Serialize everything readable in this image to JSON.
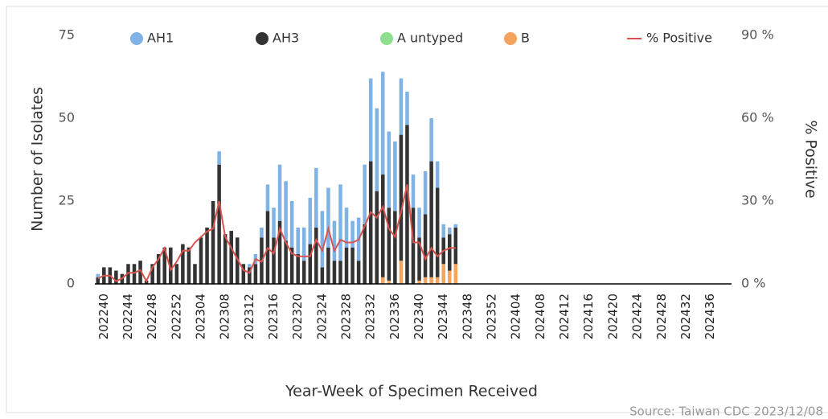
{
  "chart_data": {
    "type": "stacked-bar-line",
    "x_label": "Year-Week of Specimen Received",
    "y_label": "Number of Isolates",
    "y2_label": "% Positive",
    "source": "Source: Taiwan CDC 2023/12/08",
    "categories": [
      null,
      "202240",
      null,
      null,
      null,
      "202244",
      null,
      null,
      null,
      "202248",
      null,
      null,
      null,
      "202252",
      null,
      null,
      null,
      "202304",
      null,
      null,
      null,
      "202308",
      null,
      null,
      null,
      "202312",
      null,
      null,
      null,
      "202316",
      null,
      null,
      null,
      "202320",
      null,
      null,
      null,
      "202324",
      null,
      null,
      null,
      "202328",
      null,
      null,
      null,
      "202332",
      null,
      null,
      null,
      "202336",
      null,
      null,
      null,
      "202340",
      null,
      null,
      null,
      "202344",
      null,
      null,
      null,
      "202348",
      null,
      null,
      null,
      "202352",
      null,
      null,
      null,
      "202404",
      null,
      null,
      null,
      "202408",
      null,
      null,
      null,
      "202412",
      null,
      null,
      null,
      "202416",
      null,
      null,
      null,
      "202420",
      null,
      null,
      null,
      "202424",
      null,
      null,
      null,
      "202428",
      null,
      null,
      null,
      "202432",
      null,
      null,
      null,
      "202436",
      null,
      null,
      null
    ],
    "series": [
      {
        "name": "AH1",
        "color": "#7fb3e6",
        "values": [
          1,
          0,
          0,
          0,
          0,
          0,
          0,
          0,
          0,
          0,
          0,
          0,
          0,
          0,
          0,
          0,
          0,
          0,
          0,
          0,
          4,
          0,
          0,
          0,
          0,
          1,
          3,
          3,
          8,
          9,
          17,
          18,
          14,
          8,
          10,
          14,
          18,
          17,
          18,
          12,
          23,
          12,
          8,
          13,
          18,
          25,
          25,
          31,
          23,
          21,
          17,
          10,
          10,
          9,
          13,
          13,
          8,
          4,
          2,
          1,
          null,
          null,
          null,
          null,
          null,
          null,
          null,
          null,
          null,
          null,
          null,
          null,
          null,
          null,
          null,
          null,
          null,
          null,
          null,
          null,
          null,
          null,
          null,
          null,
          null,
          null,
          null,
          null,
          null,
          null,
          null,
          null,
          null,
          null,
          null,
          null,
          null,
          null,
          null,
          null,
          null,
          null,
          null,
          null,
          null
        ]
      },
      {
        "name": "AH3",
        "color": "#333333",
        "values": [
          2,
          5,
          5,
          4,
          3,
          6,
          6,
          7,
          1,
          6,
          9,
          11,
          11,
          6,
          12,
          11,
          6,
          14,
          17,
          25,
          36,
          15,
          16,
          14,
          6,
          5,
          6,
          14,
          22,
          14,
          19,
          13,
          11,
          9,
          7,
          12,
          17,
          5,
          11,
          7,
          7,
          11,
          11,
          7,
          18,
          37,
          28,
          31,
          22,
          22,
          38,
          48,
          23,
          13,
          19,
          35,
          27,
          8,
          11,
          11,
          null,
          null,
          null,
          null,
          null,
          null,
          null,
          null,
          null,
          null,
          null,
          null,
          null,
          null,
          null,
          null,
          null,
          null,
          null,
          null,
          null,
          null,
          null,
          null,
          null,
          null,
          null,
          null,
          null,
          null,
          null,
          null,
          null,
          null,
          null,
          null,
          null,
          null,
          null,
          null,
          null,
          null,
          null,
          null,
          null
        ]
      },
      {
        "name": "A untyped",
        "color": "#8ee08e",
        "values": [
          0,
          0,
          0,
          0,
          0,
          0,
          0,
          0,
          0,
          0,
          0,
          0,
          0,
          0,
          0,
          0,
          0,
          0,
          0,
          0,
          0,
          0,
          0,
          0,
          0,
          0,
          0,
          0,
          0,
          0,
          0,
          0,
          0,
          0,
          0,
          0,
          0,
          0,
          0,
          0,
          0,
          0,
          0,
          0,
          0,
          0,
          0,
          0,
          0,
          0,
          0,
          0,
          0,
          0,
          0,
          0,
          0,
          0,
          0,
          0,
          null,
          null,
          null,
          null,
          null,
          null,
          null,
          null,
          null,
          null,
          null,
          null,
          null,
          null,
          null,
          null,
          null,
          null,
          null,
          null,
          null,
          null,
          null,
          null,
          null,
          null,
          null,
          null,
          null,
          null,
          null,
          null,
          null,
          null,
          null,
          null,
          null,
          null,
          null,
          null,
          null,
          null,
          null,
          null,
          null
        ]
      },
      {
        "name": "B",
        "color": "#f5a45d",
        "values": [
          0,
          0,
          0,
          0,
          0,
          0,
          0,
          0,
          0,
          0,
          0,
          0,
          0,
          0,
          0,
          0,
          0,
          0,
          0,
          0,
          0,
          0,
          0,
          0,
          0,
          0,
          0,
          0,
          0,
          0,
          0,
          0,
          0,
          0,
          0,
          0,
          0,
          0,
          0,
          0,
          0,
          0,
          0,
          0,
          0,
          0,
          0,
          2,
          1,
          0,
          7,
          0,
          0,
          1,
          2,
          2,
          2,
          6,
          4,
          6,
          null,
          null,
          null,
          null,
          null,
          null,
          null,
          null,
          null,
          null,
          null,
          null,
          null,
          null,
          null,
          null,
          null,
          null,
          null,
          null,
          null,
          null,
          null,
          null,
          null,
          null,
          null,
          null,
          null,
          null,
          null,
          null,
          null,
          null,
          null,
          null,
          null,
          null,
          null,
          null,
          null,
          null,
          null,
          null,
          null
        ]
      },
      {
        "name": "% Positive",
        "color": "#d9534f",
        "axis": "y2",
        "values": [
          2,
          3,
          3,
          1,
          2,
          4,
          4,
          5,
          1,
          6,
          9,
          13,
          5,
          8,
          12,
          12,
          15,
          17,
          19,
          20,
          30,
          17,
          13,
          9,
          5,
          4,
          9,
          8,
          13,
          11,
          20,
          15,
          11,
          10,
          10,
          10,
          16,
          12,
          20,
          12,
          16,
          15,
          15,
          16,
          21,
          26,
          24,
          28,
          20,
          17,
          26,
          36,
          15,
          15,
          9,
          13,
          10,
          12,
          13,
          13,
          null,
          null,
          null,
          null,
          null,
          null,
          null,
          null,
          null,
          null,
          null,
          null,
          null,
          null,
          null,
          null,
          null,
          null,
          null,
          null,
          null,
          null,
          null,
          null,
          null,
          null,
          null,
          null,
          null,
          null,
          null,
          null,
          null,
          null,
          null,
          null,
          null,
          null,
          null,
          null,
          null,
          null,
          null,
          null,
          null
        ]
      }
    ],
    "ylim": [
      0,
      75
    ],
    "yticks": [
      0,
      25,
      50,
      75
    ],
    "y2lim": [
      0,
      90
    ],
    "y2ticks": [
      {
        "value": 0,
        "label": "0 %"
      },
      {
        "value": 30,
        "label": "30 %"
      },
      {
        "value": 60,
        "label": "60 %"
      },
      {
        "value": 90,
        "label": "90 %"
      }
    ]
  }
}
